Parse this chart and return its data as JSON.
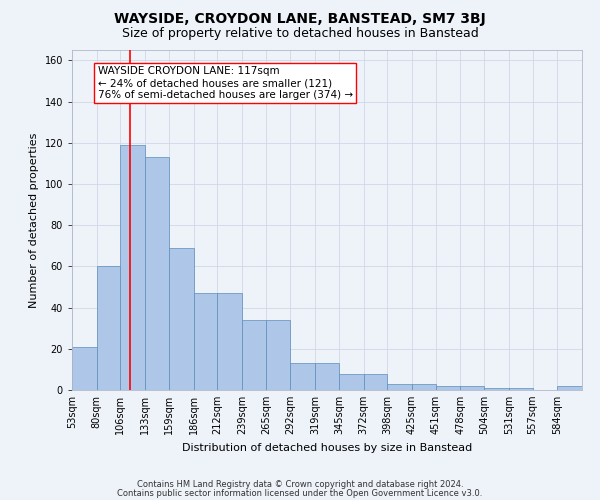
{
  "title": "WAYSIDE, CROYDON LANE, BANSTEAD, SM7 3BJ",
  "subtitle": "Size of property relative to detached houses in Banstead",
  "xlabel": "Distribution of detached houses by size in Banstead",
  "ylabel": "Number of detached properties",
  "footnote1": "Contains HM Land Registry data © Crown copyright and database right 2024.",
  "footnote2": "Contains public sector information licensed under the Open Government Licence v3.0.",
  "bin_labels": [
    "53sqm",
    "80sqm",
    "106sqm",
    "133sqm",
    "159sqm",
    "186sqm",
    "212sqm",
    "239sqm",
    "265sqm",
    "292sqm",
    "319sqm",
    "345sqm",
    "372sqm",
    "398sqm",
    "425sqm",
    "451sqm",
    "478sqm",
    "504sqm",
    "531sqm",
    "557sqm",
    "584sqm"
  ],
  "bar_values": [
    21,
    60,
    119,
    113,
    69,
    47,
    47,
    34,
    34,
    13,
    13,
    8,
    8,
    3,
    3,
    2,
    2,
    1,
    1,
    0,
    2
  ],
  "bar_color": "#aec6e8",
  "bar_edge_color": "#5b8db8",
  "property_line_x": 117,
  "bin_edges": [
    53,
    80,
    106,
    133,
    159,
    186,
    212,
    239,
    265,
    292,
    319,
    345,
    372,
    398,
    425,
    451,
    478,
    504,
    531,
    557,
    584,
    611
  ],
  "annotation_text": "WAYSIDE CROYDON LANE: 117sqm\n← 24% of detached houses are smaller (121)\n76% of semi-detached houses are larger (374) →",
  "annotation_box_color": "white",
  "annotation_box_edge_color": "red",
  "vline_color": "red",
  "ylim": [
    0,
    165
  ],
  "yticks": [
    0,
    20,
    40,
    60,
    80,
    100,
    120,
    140,
    160
  ],
  "grid_color": "#d0d8e8",
  "background_color": "#eef2f9",
  "title_fontsize": 10,
  "subtitle_fontsize": 9,
  "axis_label_fontsize": 8,
  "tick_fontsize": 7,
  "footnote_fontsize": 6,
  "annotation_fontsize": 7.5
}
